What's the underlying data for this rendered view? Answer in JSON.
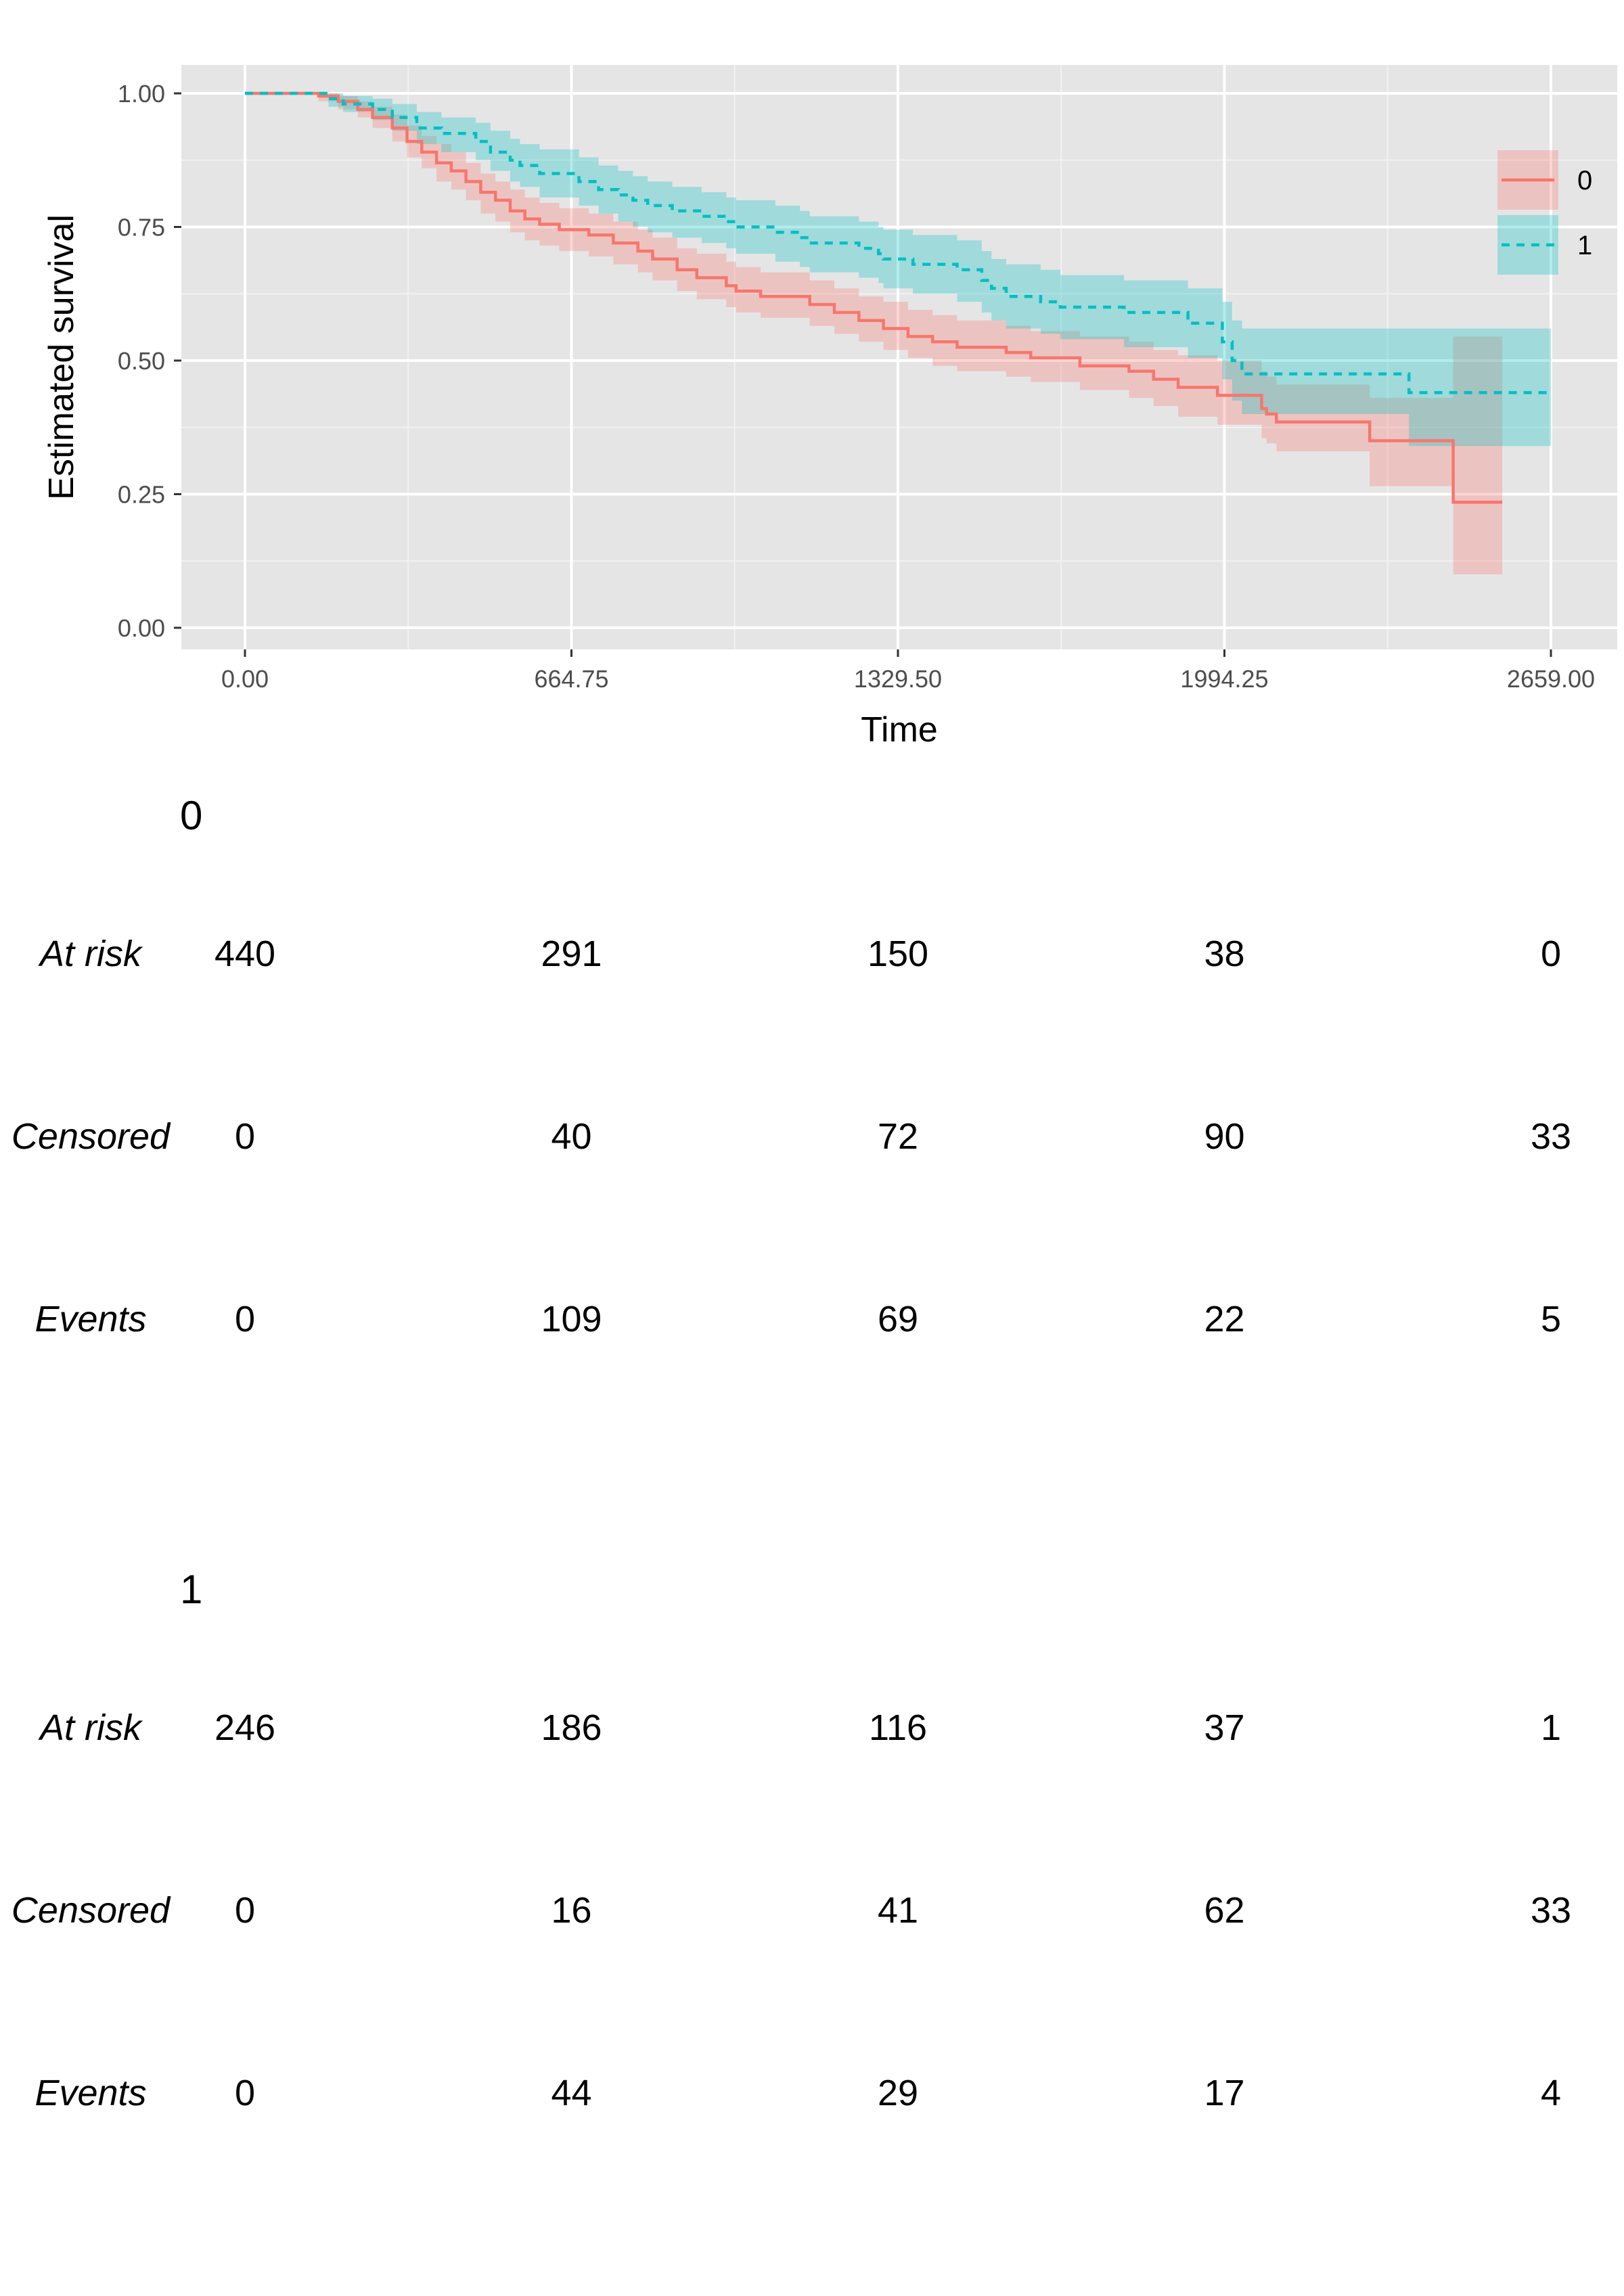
{
  "chart_data": {
    "type": "line",
    "subtype": "kaplan-meier",
    "xlabel": "Time",
    "ylabel": "Estimated survival",
    "xlim": [
      0,
      2659
    ],
    "ylim": [
      0,
      1
    ],
    "x_ticks": [
      "0.00",
      "664.75",
      "1329.50",
      "1994.25",
      "2659.00"
    ],
    "x_tick_values": [
      0,
      664.75,
      1329.5,
      1994.25,
      2659
    ],
    "y_ticks": [
      "0.00",
      "0.25",
      "0.50",
      "0.75",
      "1.00"
    ],
    "y_tick_values": [
      0,
      0.25,
      0.5,
      0.75,
      1
    ],
    "grid": true,
    "legend_position": "right",
    "series": [
      {
        "name": "0",
        "color": "#F8766D",
        "linestyle": "solid",
        "points": [
          [
            0,
            1.0
          ],
          [
            150,
            0.995
          ],
          [
            190,
            0.985
          ],
          [
            230,
            0.97
          ],
          [
            260,
            0.955
          ],
          [
            300,
            0.935
          ],
          [
            330,
            0.91
          ],
          [
            360,
            0.89
          ],
          [
            390,
            0.87
          ],
          [
            420,
            0.855
          ],
          [
            450,
            0.835
          ],
          [
            480,
            0.815
          ],
          [
            510,
            0.8
          ],
          [
            540,
            0.78
          ],
          [
            570,
            0.765
          ],
          [
            600,
            0.755
          ],
          [
            640,
            0.745
          ],
          [
            700,
            0.735
          ],
          [
            750,
            0.72
          ],
          [
            800,
            0.705
          ],
          [
            830,
            0.69
          ],
          [
            880,
            0.67
          ],
          [
            920,
            0.655
          ],
          [
            980,
            0.64
          ],
          [
            1000,
            0.63
          ],
          [
            1050,
            0.62
          ],
          [
            1150,
            0.605
          ],
          [
            1200,
            0.59
          ],
          [
            1250,
            0.575
          ],
          [
            1300,
            0.56
          ],
          [
            1350,
            0.545
          ],
          [
            1400,
            0.535
          ],
          [
            1450,
            0.525
          ],
          [
            1550,
            0.515
          ],
          [
            1600,
            0.505
          ],
          [
            1700,
            0.49
          ],
          [
            1800,
            0.48
          ],
          [
            1850,
            0.465
          ],
          [
            1900,
            0.45
          ],
          [
            1980,
            0.435
          ],
          [
            2070,
            0.41
          ],
          [
            2080,
            0.4
          ],
          [
            2100,
            0.385
          ],
          [
            2290,
            0.35
          ],
          [
            2460,
            0.235
          ],
          [
            2560,
            0.235
          ]
        ],
        "ci_upper": [
          [
            0,
            1.0
          ],
          [
            150,
            1.0
          ],
          [
            190,
            0.995
          ],
          [
            230,
            0.985
          ],
          [
            260,
            0.975
          ],
          [
            300,
            0.96
          ],
          [
            330,
            0.94
          ],
          [
            360,
            0.92
          ],
          [
            390,
            0.905
          ],
          [
            420,
            0.89
          ],
          [
            450,
            0.87
          ],
          [
            480,
            0.85
          ],
          [
            510,
            0.835
          ],
          [
            540,
            0.82
          ],
          [
            570,
            0.805
          ],
          [
            600,
            0.795
          ],
          [
            640,
            0.785
          ],
          [
            700,
            0.775
          ],
          [
            750,
            0.76
          ],
          [
            800,
            0.745
          ],
          [
            830,
            0.73
          ],
          [
            880,
            0.71
          ],
          [
            920,
            0.7
          ],
          [
            980,
            0.685
          ],
          [
            1000,
            0.675
          ],
          [
            1050,
            0.665
          ],
          [
            1150,
            0.65
          ],
          [
            1200,
            0.635
          ],
          [
            1250,
            0.62
          ],
          [
            1300,
            0.61
          ],
          [
            1350,
            0.595
          ],
          [
            1400,
            0.585
          ],
          [
            1450,
            0.575
          ],
          [
            1550,
            0.565
          ],
          [
            1600,
            0.555
          ],
          [
            1700,
            0.545
          ],
          [
            1800,
            0.535
          ],
          [
            1850,
            0.52
          ],
          [
            1900,
            0.51
          ],
          [
            1980,
            0.5
          ],
          [
            2070,
            0.48
          ],
          [
            2080,
            0.47
          ],
          [
            2100,
            0.455
          ],
          [
            2290,
            0.43
          ],
          [
            2460,
            0.545
          ],
          [
            2560,
            0.545
          ]
        ],
        "ci_lower": [
          [
            0,
            1.0
          ],
          [
            150,
            0.985
          ],
          [
            190,
            0.97
          ],
          [
            230,
            0.955
          ],
          [
            260,
            0.935
          ],
          [
            300,
            0.91
          ],
          [
            330,
            0.88
          ],
          [
            360,
            0.86
          ],
          [
            390,
            0.835
          ],
          [
            420,
            0.82
          ],
          [
            450,
            0.8
          ],
          [
            480,
            0.775
          ],
          [
            510,
            0.76
          ],
          [
            540,
            0.74
          ],
          [
            570,
            0.725
          ],
          [
            600,
            0.715
          ],
          [
            640,
            0.705
          ],
          [
            700,
            0.695
          ],
          [
            750,
            0.68
          ],
          [
            800,
            0.665
          ],
          [
            830,
            0.65
          ],
          [
            880,
            0.63
          ],
          [
            920,
            0.615
          ],
          [
            980,
            0.6
          ],
          [
            1000,
            0.59
          ],
          [
            1050,
            0.58
          ],
          [
            1150,
            0.565
          ],
          [
            1200,
            0.55
          ],
          [
            1250,
            0.535
          ],
          [
            1300,
            0.52
          ],
          [
            1350,
            0.505
          ],
          [
            1400,
            0.49
          ],
          [
            1450,
            0.48
          ],
          [
            1550,
            0.47
          ],
          [
            1600,
            0.46
          ],
          [
            1700,
            0.445
          ],
          [
            1800,
            0.43
          ],
          [
            1850,
            0.415
          ],
          [
            1900,
            0.395
          ],
          [
            1980,
            0.38
          ],
          [
            2070,
            0.355
          ],
          [
            2080,
            0.345
          ],
          [
            2100,
            0.33
          ],
          [
            2290,
            0.265
          ],
          [
            2460,
            0.1
          ],
          [
            2560,
            0.1
          ]
        ]
      },
      {
        "name": "1",
        "color": "#00BFC4",
        "linestyle": "dashed",
        "points": [
          [
            0,
            1.0
          ],
          [
            170,
            0.99
          ],
          [
            200,
            0.98
          ],
          [
            260,
            0.97
          ],
          [
            300,
            0.955
          ],
          [
            350,
            0.935
          ],
          [
            400,
            0.925
          ],
          [
            470,
            0.91
          ],
          [
            500,
            0.89
          ],
          [
            540,
            0.875
          ],
          [
            560,
            0.865
          ],
          [
            600,
            0.85
          ],
          [
            680,
            0.835
          ],
          [
            720,
            0.82
          ],
          [
            760,
            0.81
          ],
          [
            790,
            0.8
          ],
          [
            820,
            0.79
          ],
          [
            870,
            0.78
          ],
          [
            930,
            0.77
          ],
          [
            980,
            0.76
          ],
          [
            1000,
            0.75
          ],
          [
            1080,
            0.74
          ],
          [
            1130,
            0.73
          ],
          [
            1150,
            0.72
          ],
          [
            1250,
            0.71
          ],
          [
            1290,
            0.7
          ],
          [
            1300,
            0.69
          ],
          [
            1360,
            0.68
          ],
          [
            1450,
            0.67
          ],
          [
            1500,
            0.65
          ],
          [
            1520,
            0.635
          ],
          [
            1550,
            0.62
          ],
          [
            1620,
            0.61
          ],
          [
            1660,
            0.6
          ],
          [
            1790,
            0.59
          ],
          [
            1920,
            0.57
          ],
          [
            1990,
            0.535
          ],
          [
            2010,
            0.5
          ],
          [
            2030,
            0.475
          ],
          [
            2370,
            0.44
          ],
          [
            2659,
            0.44
          ]
        ],
        "ci_upper": [
          [
            0,
            1.0
          ],
          [
            170,
            1.0
          ],
          [
            200,
            0.995
          ],
          [
            260,
            0.99
          ],
          [
            300,
            0.98
          ],
          [
            350,
            0.965
          ],
          [
            400,
            0.955
          ],
          [
            470,
            0.945
          ],
          [
            500,
            0.93
          ],
          [
            540,
            0.915
          ],
          [
            560,
            0.905
          ],
          [
            600,
            0.895
          ],
          [
            680,
            0.88
          ],
          [
            720,
            0.865
          ],
          [
            760,
            0.855
          ],
          [
            790,
            0.845
          ],
          [
            820,
            0.835
          ],
          [
            870,
            0.825
          ],
          [
            930,
            0.815
          ],
          [
            980,
            0.805
          ],
          [
            1000,
            0.8
          ],
          [
            1080,
            0.79
          ],
          [
            1130,
            0.78
          ],
          [
            1150,
            0.77
          ],
          [
            1250,
            0.76
          ],
          [
            1290,
            0.75
          ],
          [
            1300,
            0.745
          ],
          [
            1360,
            0.735
          ],
          [
            1450,
            0.725
          ],
          [
            1500,
            0.705
          ],
          [
            1520,
            0.69
          ],
          [
            1550,
            0.68
          ],
          [
            1620,
            0.67
          ],
          [
            1660,
            0.66
          ],
          [
            1790,
            0.65
          ],
          [
            1920,
            0.635
          ],
          [
            1990,
            0.61
          ],
          [
            2010,
            0.575
          ],
          [
            2030,
            0.56
          ],
          [
            2370,
            0.56
          ],
          [
            2659,
            0.56
          ]
        ],
        "ci_lower": [
          [
            0,
            1.0
          ],
          [
            170,
            0.975
          ],
          [
            200,
            0.965
          ],
          [
            260,
            0.95
          ],
          [
            300,
            0.93
          ],
          [
            350,
            0.905
          ],
          [
            400,
            0.89
          ],
          [
            470,
            0.875
          ],
          [
            500,
            0.855
          ],
          [
            540,
            0.835
          ],
          [
            560,
            0.825
          ],
          [
            600,
            0.805
          ],
          [
            680,
            0.79
          ],
          [
            720,
            0.775
          ],
          [
            760,
            0.76
          ],
          [
            790,
            0.75
          ],
          [
            820,
            0.74
          ],
          [
            870,
            0.73
          ],
          [
            930,
            0.72
          ],
          [
            980,
            0.71
          ],
          [
            1000,
            0.7
          ],
          [
            1080,
            0.685
          ],
          [
            1130,
            0.675
          ],
          [
            1150,
            0.665
          ],
          [
            1250,
            0.655
          ],
          [
            1290,
            0.645
          ],
          [
            1300,
            0.635
          ],
          [
            1360,
            0.625
          ],
          [
            1450,
            0.61
          ],
          [
            1500,
            0.59
          ],
          [
            1520,
            0.575
          ],
          [
            1550,
            0.56
          ],
          [
            1620,
            0.55
          ],
          [
            1660,
            0.54
          ],
          [
            1790,
            0.525
          ],
          [
            1920,
            0.505
          ],
          [
            1990,
            0.465
          ],
          [
            2010,
            0.425
          ],
          [
            2030,
            0.4
          ],
          [
            2370,
            0.34
          ],
          [
            2659,
            0.34
          ]
        ]
      }
    ]
  },
  "risk_tables": [
    {
      "stratum": "0",
      "rows": [
        {
          "label": "At risk",
          "values": [
            "440",
            "291",
            "150",
            "38",
            "0"
          ]
        },
        {
          "label": "Censored",
          "values": [
            "0",
            "40",
            "72",
            "90",
            "33"
          ]
        },
        {
          "label": "Events",
          "values": [
            "0",
            "109",
            "69",
            "22",
            "5"
          ]
        }
      ]
    },
    {
      "stratum": "1",
      "rows": [
        {
          "label": "At risk",
          "values": [
            "246",
            "186",
            "116",
            "37",
            "1"
          ]
        },
        {
          "label": "Censored",
          "values": [
            "0",
            "16",
            "41",
            "62",
            "33"
          ]
        },
        {
          "label": "Events",
          "values": [
            "0",
            "44",
            "29",
            "17",
            "4"
          ]
        }
      ]
    }
  ]
}
